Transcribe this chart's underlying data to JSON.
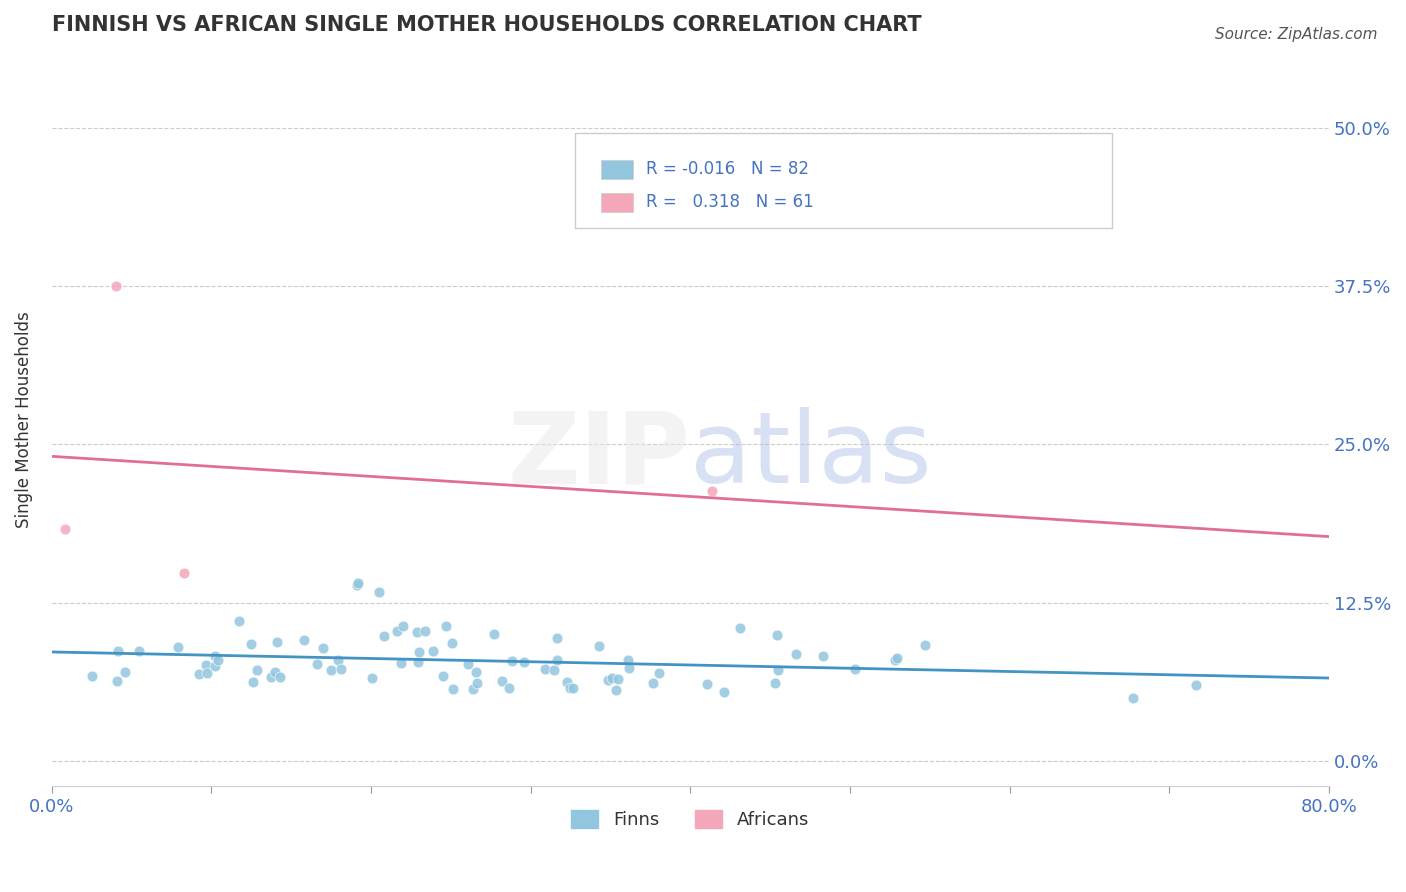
{
  "title": "FINNISH VS AFRICAN SINGLE MOTHER HOUSEHOLDS CORRELATION CHART",
  "source": "Source: ZipAtlas.com",
  "xlabel": "",
  "ylabel": "Single Mother Households",
  "xlim": [
    0.0,
    0.8
  ],
  "ylim": [
    -0.02,
    0.56
  ],
  "yticks": [
    0.0,
    0.125,
    0.25,
    0.375,
    0.5
  ],
  "ytick_labels": [
    "0.0%",
    "12.5%",
    "25.0%",
    "37.5%",
    "50.0%"
  ],
  "xticks": [
    0.0,
    0.1,
    0.2,
    0.3,
    0.4,
    0.5,
    0.6,
    0.7,
    0.8
  ],
  "finns_R": -0.016,
  "finns_N": 82,
  "africans_R": 0.318,
  "africans_N": 61,
  "finns_color": "#92c5de",
  "africans_color": "#f4a7b9",
  "finns_line_color": "#4393c3",
  "africans_line_color": "#e07090",
  "grid_color": "#aaaaaa",
  "title_color": "#333333",
  "axis_label_color": "#333333",
  "tick_color": "#4472c4",
  "background_color": "#ffffff"
}
